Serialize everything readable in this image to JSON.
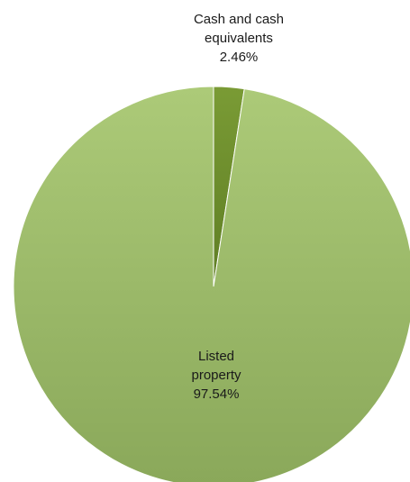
{
  "chart_data": {
    "type": "pie",
    "title": "",
    "start_angle_deg": 0,
    "direction": "clockwise",
    "slices": [
      {
        "label": "Cash and cash equivalents",
        "label_lines": [
          "Cash and cash",
          "equivalents"
        ],
        "value": 2.46,
        "value_label": "2.46%",
        "color": "#6e8f2e"
      },
      {
        "label": "Listed property",
        "label_lines": [
          "Listed",
          "property"
        ],
        "value": 97.54,
        "value_label": "97.54%",
        "color": "#9dbb67"
      }
    ],
    "legend": "none"
  }
}
